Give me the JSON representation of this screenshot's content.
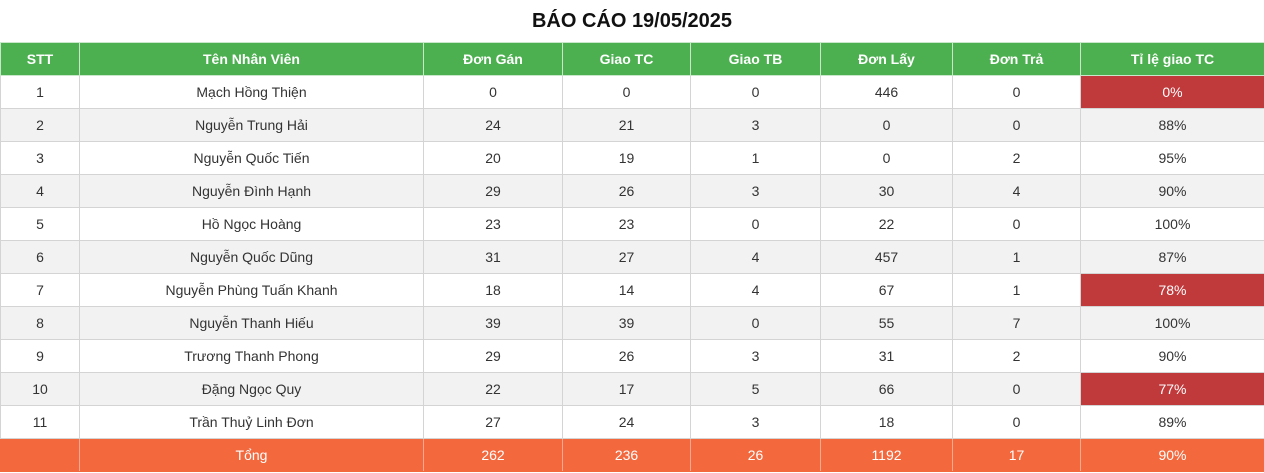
{
  "title": "BÁO CÁO 19/05/2025",
  "headers": [
    "STT",
    "Tên Nhân Viên",
    "Đơn Gán",
    "Giao TC",
    "Giao TB",
    "Đơn Lấy",
    "Đơn Trả",
    "Tỉ lệ giao TC"
  ],
  "rows": [
    {
      "stt": "1",
      "name": "Mạch Hồng Thiện",
      "don_gan": "0",
      "giao_tc": "0",
      "giao_tb": "0",
      "don_lay": "446",
      "don_tra": "0",
      "ti_le": "0%",
      "low": true
    },
    {
      "stt": "2",
      "name": "Nguyễn Trung Hải",
      "don_gan": "24",
      "giao_tc": "21",
      "giao_tb": "3",
      "don_lay": "0",
      "don_tra": "0",
      "ti_le": "88%",
      "low": false
    },
    {
      "stt": "3",
      "name": "Nguyễn Quốc Tiến",
      "don_gan": "20",
      "giao_tc": "19",
      "giao_tb": "1",
      "don_lay": "0",
      "don_tra": "2",
      "ti_le": "95%",
      "low": false
    },
    {
      "stt": "4",
      "name": "Nguyễn Đình Hạnh",
      "don_gan": "29",
      "giao_tc": "26",
      "giao_tb": "3",
      "don_lay": "30",
      "don_tra": "4",
      "ti_le": "90%",
      "low": false
    },
    {
      "stt": "5",
      "name": "Hồ Ngọc Hoàng",
      "don_gan": "23",
      "giao_tc": "23",
      "giao_tb": "0",
      "don_lay": "22",
      "don_tra": "0",
      "ti_le": "100%",
      "low": false
    },
    {
      "stt": "6",
      "name": "Nguyễn Quốc Dũng",
      "don_gan": "31",
      "giao_tc": "27",
      "giao_tb": "4",
      "don_lay": "457",
      "don_tra": "1",
      "ti_le": "87%",
      "low": false
    },
    {
      "stt": "7",
      "name": "Nguyễn Phùng Tuấn Khanh",
      "don_gan": "18",
      "giao_tc": "14",
      "giao_tb": "4",
      "don_lay": "67",
      "don_tra": "1",
      "ti_le": "78%",
      "low": true
    },
    {
      "stt": "8",
      "name": "Nguyễn Thanh Hiếu",
      "don_gan": "39",
      "giao_tc": "39",
      "giao_tb": "0",
      "don_lay": "55",
      "don_tra": "7",
      "ti_le": "100%",
      "low": false
    },
    {
      "stt": "9",
      "name": "Trương Thanh Phong",
      "don_gan": "29",
      "giao_tc": "26",
      "giao_tb": "3",
      "don_lay": "31",
      "don_tra": "2",
      "ti_le": "90%",
      "low": false
    },
    {
      "stt": "10",
      "name": "Đặng Ngọc Quy",
      "don_gan": "22",
      "giao_tc": "17",
      "giao_tb": "5",
      "don_lay": "66",
      "don_tra": "0",
      "ti_le": "77%",
      "low": true
    },
    {
      "stt": "11",
      "name": "Trần Thuỷ Linh Đơn",
      "don_gan": "27",
      "giao_tc": "24",
      "giao_tb": "3",
      "don_lay": "18",
      "don_tra": "0",
      "ti_le": "89%",
      "low": false
    }
  ],
  "total": {
    "stt": "",
    "label": "Tổng",
    "don_gan": "262",
    "giao_tc": "236",
    "giao_tb": "26",
    "don_lay": "1192",
    "don_tra": "17",
    "ti_le": "90%"
  },
  "colors": {
    "header": "#4caf50",
    "total": "#f4683e",
    "low_rate": "#c0393b",
    "stripe": "#f2f2f2"
  }
}
